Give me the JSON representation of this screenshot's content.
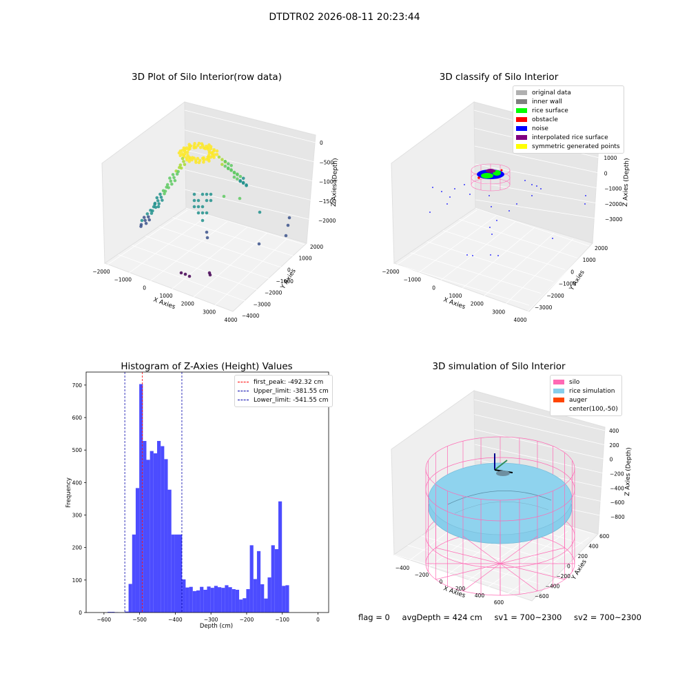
{
  "suptitle": "DTDTR02 2026-08-11 20:23:44",
  "footer": {
    "flag": "flag = 0",
    "avg_depth": "avgDepth = 424 cm",
    "sv1": "sv1 = 700~2300",
    "sv2": "sv2 = 700~2300"
  },
  "chart_data": [
    {
      "type": "scatter",
      "title": "3D Plot of Silo Interior(row data)",
      "xlabel": "X Axies",
      "ylabel": "Y Axies",
      "zlabel": "Z Axies (Depth)",
      "xticks": [
        "−2000",
        "−1000",
        "0",
        "1000",
        "2000",
        "3000",
        "4000"
      ],
      "yticks": [
        "−4000",
        "−3000",
        "−2000",
        "−1000",
        "0",
        "1000",
        "2000"
      ],
      "zticks": [
        "−2000",
        "−1500",
        "−1000",
        "−500",
        "0"
      ],
      "xlim": [
        -2000,
        4000
      ],
      "ylim": [
        -4000,
        2500
      ],
      "zlim": [
        -2300,
        0
      ],
      "colormap": "viridis"
    },
    {
      "type": "scatter",
      "title": "3D classify of Silo Interior",
      "xlabel": "X Axies",
      "ylabel": "Y Axies",
      "zlabel": "Z Axies (Depth)",
      "xticks": [
        "−2000",
        "−1000",
        "0",
        "1000",
        "2000",
        "3000",
        "4000"
      ],
      "yticks": [
        "−3000",
        "−2000",
        "−1000",
        "0",
        "1000",
        "2000"
      ],
      "zticks": [
        "−3000",
        "−2000",
        "−1000",
        "0",
        "1000",
        "2000"
      ],
      "legend": [
        {
          "label": "original data",
          "color": "#b0b0b0"
        },
        {
          "label": "inner wall",
          "color": "#808080"
        },
        {
          "label": "rice surface",
          "color": "#00ff00"
        },
        {
          "label": "obstacle",
          "color": "#ff0000"
        },
        {
          "label": "noise",
          "color": "#0000ff"
        },
        {
          "label": "interpolated rice surface",
          "color": "#800080"
        },
        {
          "label": "symmetric generated points",
          "color": "#ffff00"
        }
      ],
      "legend_position": "top-right"
    },
    {
      "type": "bar",
      "title": "Histogram of Z-Axies (Height) Values",
      "xlabel": "Depth (cm)",
      "ylabel": "Frequency",
      "xlim": [
        -650,
        30
      ],
      "ylim": [
        0,
        740
      ],
      "xticks": [
        -600,
        -500,
        -400,
        -300,
        -200,
        -100,
        0
      ],
      "xtick_labels": [
        "−600",
        "−500",
        "−400",
        "−300",
        "−200",
        "−100",
        "0"
      ],
      "yticks": [
        0,
        100,
        200,
        300,
        400,
        500,
        600,
        700
      ],
      "bar_color": "#4c4cff",
      "bins": [
        [
          -590,
          -580,
          2
        ],
        [
          -580,
          -570,
          2
        ],
        [
          -570,
          -560,
          1
        ],
        [
          -541,
          -531,
          3
        ],
        [
          -531,
          -521,
          88
        ],
        [
          -521,
          -511,
          240
        ],
        [
          -511,
          -501,
          383
        ],
        [
          -501,
          -491,
          703
        ],
        [
          -491,
          -481,
          528
        ],
        [
          -481,
          -471,
          470
        ],
        [
          -471,
          -461,
          497
        ],
        [
          -461,
          -451,
          490
        ],
        [
          -451,
          -441,
          528
        ],
        [
          -441,
          -431,
          512
        ],
        [
          -431,
          -421,
          472
        ],
        [
          -421,
          -411,
          378
        ],
        [
          -411,
          -401,
          240
        ],
        [
          -401,
          -381,
          240
        ],
        [
          -381,
          -371,
          102
        ],
        [
          -371,
          -361,
          77
        ],
        [
          -361,
          -351,
          79
        ],
        [
          -351,
          -341,
          66
        ],
        [
          -341,
          -331,
          68
        ],
        [
          -331,
          -321,
          79
        ],
        [
          -321,
          -311,
          70
        ],
        [
          -311,
          -301,
          80
        ],
        [
          -301,
          -291,
          76
        ],
        [
          -291,
          -281,
          82
        ],
        [
          -281,
          -271,
          78
        ],
        [
          -271,
          -261,
          76
        ],
        [
          -261,
          -251,
          84
        ],
        [
          -251,
          -241,
          78
        ],
        [
          -241,
          -231,
          72
        ],
        [
          -231,
          -221,
          70
        ],
        [
          -221,
          -211,
          40
        ],
        [
          -211,
          -201,
          44
        ],
        [
          -201,
          -191,
          72
        ],
        [
          -191,
          -181,
          207
        ],
        [
          -181,
          -171,
          103
        ],
        [
          -171,
          -161,
          189
        ],
        [
          -161,
          -151,
          87
        ],
        [
          -151,
          -141,
          43
        ],
        [
          -141,
          -131,
          108
        ],
        [
          -131,
          -121,
          207
        ],
        [
          -121,
          -111,
          195
        ],
        [
          -111,
          -101,
          342
        ],
        [
          -101,
          -91,
          82
        ],
        [
          -91,
          -81,
          84
        ]
      ],
      "vlines": [
        {
          "label": "first_peak: -492.32 cm",
          "value": -492.32,
          "color": "#ff0000"
        },
        {
          "label": "Upper_limit: -381.55 cm",
          "value": -381.55,
          "color": "#0000aa"
        },
        {
          "label": "Lower_limit: -541.55 cm",
          "value": -541.55,
          "color": "#0000aa"
        }
      ],
      "legend_position": "top-right"
    },
    {
      "type": "3d-surface",
      "title": "3D simulation of Silo Interior",
      "xlabel": "X Axies",
      "ylabel": "Y Axies",
      "zlabel": "Z Axies (Depth)",
      "xticks": [
        "−400",
        "−200",
        "0",
        "200",
        "400",
        "600"
      ],
      "yticks": [
        "−600",
        "−400",
        "−200",
        "0",
        "200",
        "400",
        "600"
      ],
      "zticks": [
        "−800",
        "−600",
        "−400",
        "−200",
        "0",
        "200",
        "400"
      ],
      "legend": [
        {
          "label": "silo",
          "color": "#ff69b4"
        },
        {
          "label": "rice simulation",
          "color": "#87ceeb"
        },
        {
          "label": "auger",
          "color": "#ff4500"
        },
        {
          "label": "center(100,-50)",
          "color": ""
        }
      ],
      "legend_position": "top-right"
    }
  ]
}
